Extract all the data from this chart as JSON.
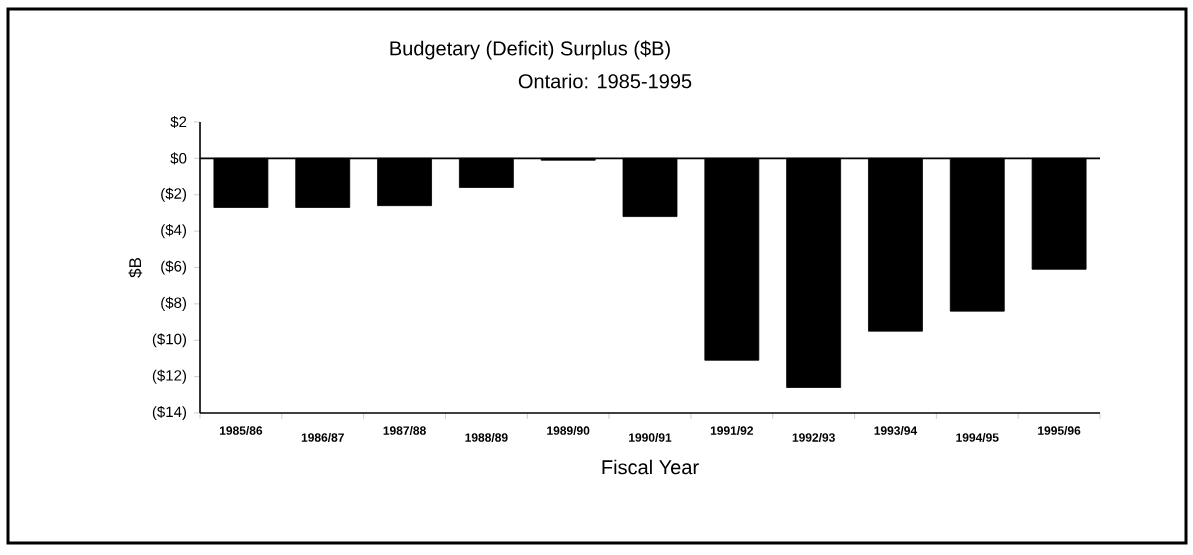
{
  "chart_data": {
    "type": "bar",
    "title": "Budgetary (Deficit) Surplus  ($B)",
    "subtitle": "Ontario: 1985-1995",
    "xlabel": "Fiscal Year",
    "ylabel": "$B",
    "categories": [
      "1985/86",
      "1986/87",
      "1987/88",
      "1988/89",
      "1989/90",
      "1990/91",
      "1991/92",
      "1992/93",
      "1993/94",
      "1994/95",
      "1995/96"
    ],
    "values": [
      -2.7,
      -2.7,
      -2.6,
      -1.6,
      -0.1,
      -3.2,
      -11.1,
      -12.6,
      -9.5,
      -8.4,
      -6.1
    ],
    "color": "#000000",
    "ylim": [
      -14,
      2
    ],
    "yticks": [
      {
        "value": 2,
        "label": "$2"
      },
      {
        "value": 0,
        "label": "$0"
      },
      {
        "value": -2,
        "label": "($2)"
      },
      {
        "value": -4,
        "label": "($4)"
      },
      {
        "value": -6,
        "label": "($6)"
      },
      {
        "value": -8,
        "label": "($8)"
      },
      {
        "value": -10,
        "label": "($10)"
      },
      {
        "value": -12,
        "label": "($12)"
      },
      {
        "value": -14,
        "label": "($14)"
      }
    ]
  }
}
